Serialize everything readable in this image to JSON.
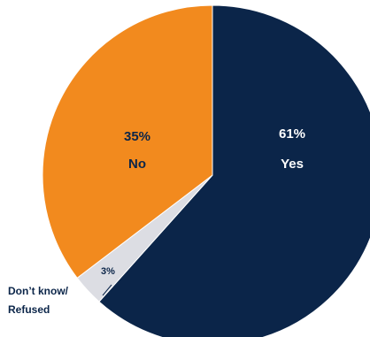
{
  "chart_data": {
    "type": "pie",
    "slices": [
      {
        "label": "Yes",
        "value": 61,
        "value_text": "61%",
        "color": "#0b2549"
      },
      {
        "label": "Don’t know/ Refused",
        "value_text": "3%",
        "value": 3,
        "color": "#dcdde3",
        "label_lines": [
          "Don’t know/",
          "Refused"
        ]
      },
      {
        "label": "No",
        "value": 35,
        "value_text": "35%",
        "color": "#f28a1e"
      }
    ],
    "title": "",
    "legend": "none"
  }
}
